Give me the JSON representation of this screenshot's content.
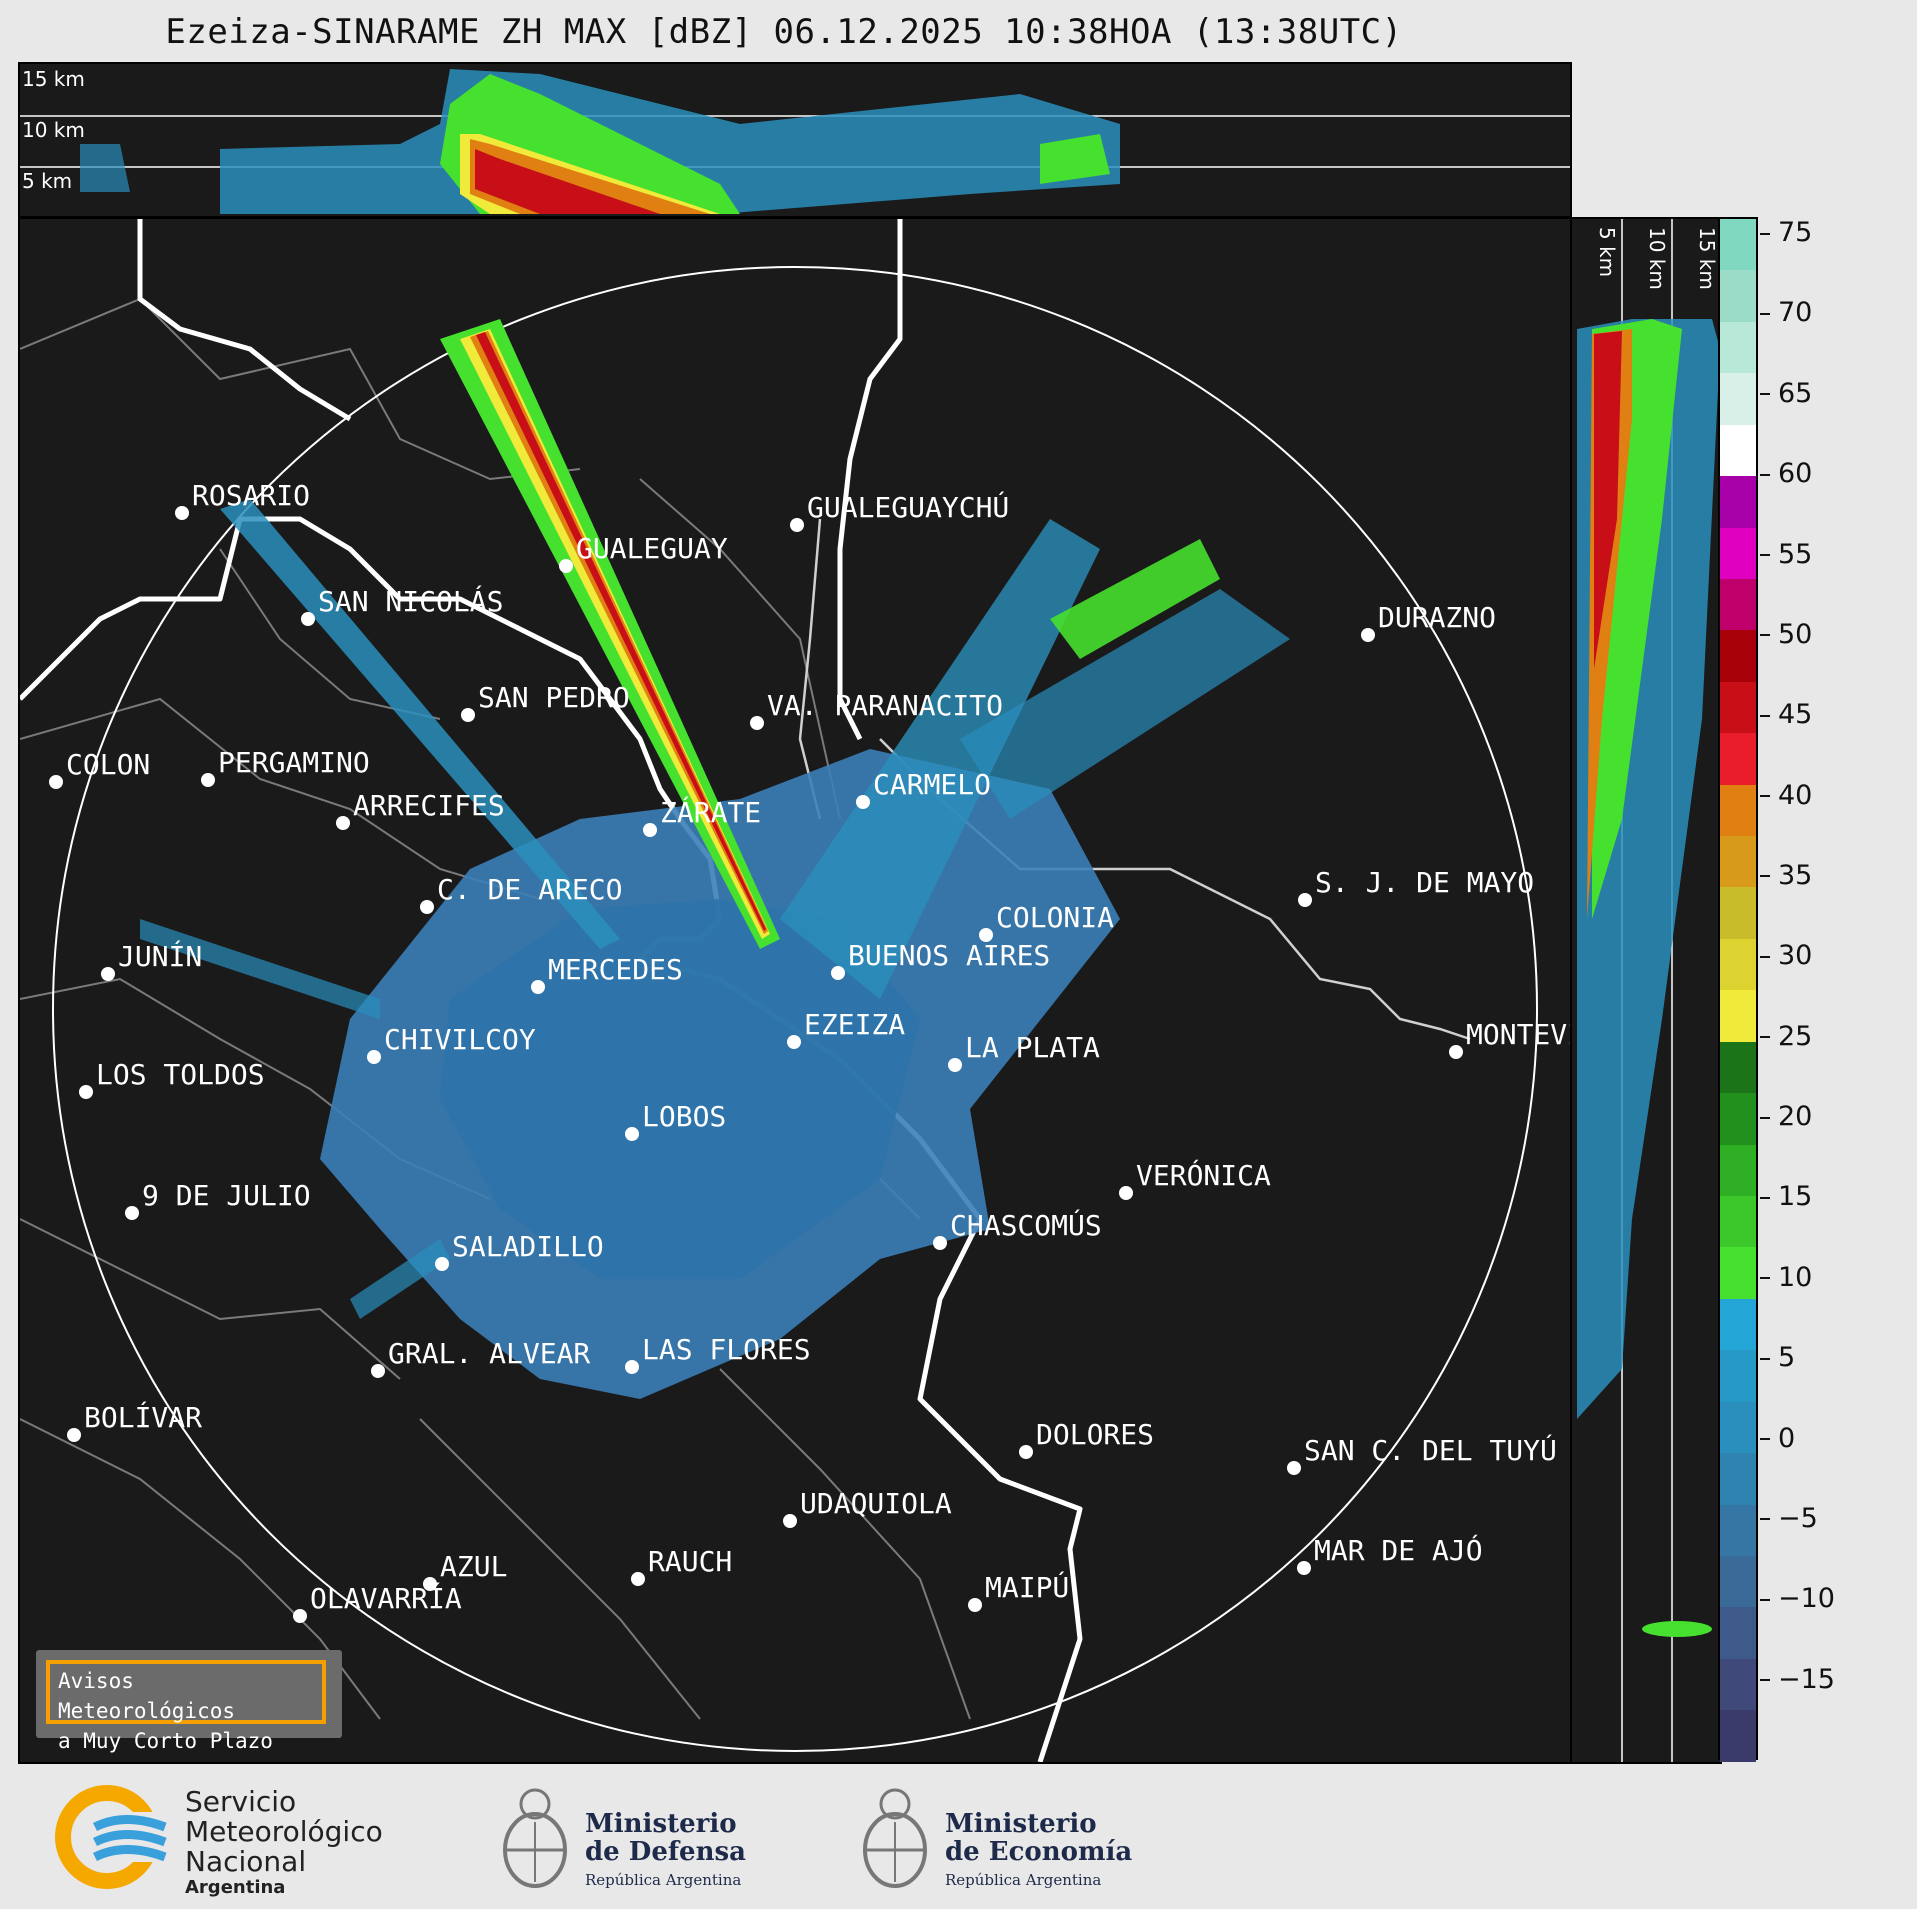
{
  "title": "Ezeiza-SINARAME ZH MAX [dBZ] 06.12.2025 10:38HOA (13:38UTC)",
  "top_panel": {
    "height_labels": [
      "15 km",
      "10 km",
      "5 km"
    ]
  },
  "side_panel": {
    "height_labels": [
      "5 km",
      "10 km",
      "15 km"
    ]
  },
  "cities": [
    {
      "name": "ROSARIO"
    },
    {
      "name": "GUALEGUAYCHÚ"
    },
    {
      "name": "GUALEGUAY"
    },
    {
      "name": "SAN NICOLÁS"
    },
    {
      "name": "DURAZNO"
    },
    {
      "name": "SAN PEDRO"
    },
    {
      "name": "VA. PARANACITO"
    },
    {
      "name": "COLON"
    },
    {
      "name": "PERGAMINO"
    },
    {
      "name": "CARMELO"
    },
    {
      "name": "ARRECIFES"
    },
    {
      "name": "ZÁRATE"
    },
    {
      "name": "C. DE ARECO"
    },
    {
      "name": "S. J. DE MAYO"
    },
    {
      "name": "COLONIA"
    },
    {
      "name": "JUNÍN"
    },
    {
      "name": "BUENOS AIRES"
    },
    {
      "name": "MERCEDES"
    },
    {
      "name": "EZEIZA"
    },
    {
      "name": "MONTEVIDEO"
    },
    {
      "name": "CHIVILCOY"
    },
    {
      "name": "LA PLATA"
    },
    {
      "name": "LOS TOLDOS"
    },
    {
      "name": "LOBOS"
    },
    {
      "name": "VERÓNICA"
    },
    {
      "name": "9 DE JULIO"
    },
    {
      "name": "CHASCOMÚS"
    },
    {
      "name": "SALADILLO"
    },
    {
      "name": "GRAL. ALVEAR"
    },
    {
      "name": "LAS FLORES"
    },
    {
      "name": "BOLÍVAR"
    },
    {
      "name": "DOLORES"
    },
    {
      "name": "SAN C. DEL TUYÚ"
    },
    {
      "name": "UDAQUIOLA"
    },
    {
      "name": "MAR DE AJÓ"
    },
    {
      "name": "RAUCH"
    },
    {
      "name": "AZUL"
    },
    {
      "name": "MAIPÚ"
    },
    {
      "name": "OLAVARRÍA"
    }
  ],
  "colorbar": {
    "unit": "dBZ",
    "ticks": [
      "75",
      "70",
      "65",
      "60",
      "55",
      "50",
      "45",
      "40",
      "35",
      "30",
      "25",
      "20",
      "15",
      "10",
      "5",
      "0",
      "−5",
      "−10",
      "−15"
    ],
    "min": -20,
    "max": 76,
    "colors": [
      "#3b3b6b",
      "#3f4a7a",
      "#3e5a8a",
      "#3a6a97",
      "#3676a4",
      "#2f83b0",
      "#2a8fbc",
      "#2699c6",
      "#23a6d6",
      "#46e02e",
      "#3cc82a",
      "#2eaf24",
      "#22901d",
      "#1b7518",
      "#f0ea3a",
      "#dcd230",
      "#c8bc2a",
      "#d89a1a",
      "#e08012",
      "#ea1e2a",
      "#c80f18",
      "#a80008",
      "#c0006a",
      "#e000c0",
      "#a800a8",
      "#ffffff",
      "#d8f0e8",
      "#b8e8d8",
      "#9adcc8",
      "#80d8c0"
    ]
  },
  "avisos": {
    "line1": "Avisos Meteorológicos",
    "line2": "a Muy Corto Plazo"
  },
  "logos": {
    "smn": {
      "line1": "Servicio",
      "line2": "Meteorológico",
      "line3": "Nacional",
      "line4": "Argentina"
    },
    "defensa": {
      "line1": "Ministerio",
      "line2": "de Defensa",
      "line3": "República Argentina"
    },
    "economia": {
      "line1": "Ministerio",
      "line2": "de Economía",
      "line3": "República Argentina"
    }
  }
}
